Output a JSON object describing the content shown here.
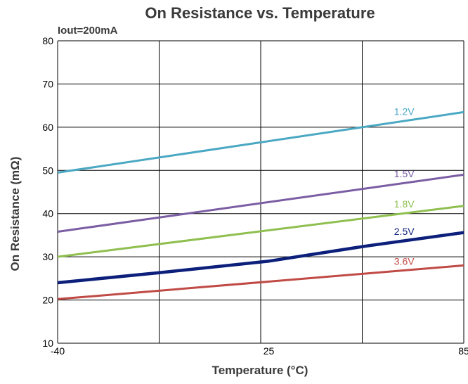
{
  "chart_data": {
    "type": "line",
    "title": "On Resistance vs. Temperature",
    "subtitle": "Iout=200mA",
    "xlabel": "Temperature (°C)",
    "ylabel": "On Resistance (mΩ)",
    "x_ticks": [
      -40,
      25,
      85
    ],
    "x_tick_labels": [
      "-40",
      "25",
      "85"
    ],
    "xlim": [
      -40,
      85
    ],
    "ylim": [
      10,
      80
    ],
    "y_ticks": [
      10,
      20,
      30,
      40,
      50,
      60,
      70,
      80
    ],
    "y_tick_labels": [
      "10",
      "20",
      "30",
      "40",
      "50",
      "60",
      "70",
      "80"
    ],
    "grid": true,
    "series": [
      {
        "name": "1.2V",
        "color": "#4aa8c3",
        "x": [
          -40,
          85
        ],
        "values": [
          49.5,
          63.5
        ]
      },
      {
        "name": "1.5V",
        "color": "#7a5da3",
        "x": [
          -40,
          85
        ],
        "values": [
          35.8,
          49
        ]
      },
      {
        "name": "1.8V",
        "color": "#8fbf4f",
        "x": [
          -40,
          85
        ],
        "values": [
          30,
          41.8
        ]
      },
      {
        "name": "2.5V",
        "color": "#0c1f7a",
        "x": [
          -40,
          -9,
          25,
          55,
          85
        ],
        "values": [
          24,
          26.3,
          29,
          32.5,
          35.6
        ]
      },
      {
        "name": "3.6V",
        "color": "#c04a45",
        "x": [
          -40,
          85
        ],
        "values": [
          20.2,
          28
        ]
      }
    ]
  }
}
